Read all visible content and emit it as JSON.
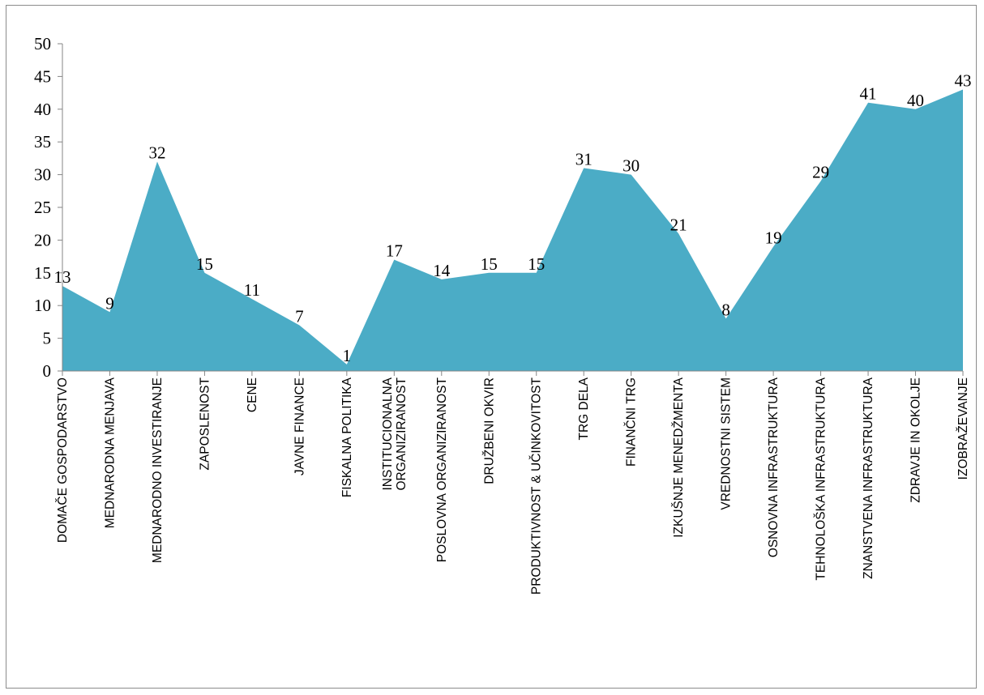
{
  "chart_data": {
    "type": "area",
    "categories": [
      [
        "DOMAČE GOSPODARSTVO"
      ],
      [
        "MEDNARODNA MENJAVA"
      ],
      [
        "MEDNARODNO INVESTIRANJE"
      ],
      [
        "ZAPOSLENOST"
      ],
      [
        "CENE"
      ],
      [
        "JAVNE FINANCE"
      ],
      [
        "FISKALNA POLITIKA"
      ],
      [
        "INSTITUCIONALNA",
        "ORGANIZIRANOST"
      ],
      [
        "POSLOVNA ORGANIZIRANOST"
      ],
      [
        "DRUŽBENI OKVIR"
      ],
      [
        "PRODUKTIVNOST & UČINKOVITOST"
      ],
      [
        "TRG DELA"
      ],
      [
        "FINANČNI TRG"
      ],
      [
        "IZKUŠNJE MENEDŽMENTA"
      ],
      [
        "VREDNOSTNI SISTEM"
      ],
      [
        "OSNOVNA INFRASTRUKTURA"
      ],
      [
        "TEHNOLOŠKA INFRASTRUKTURA"
      ],
      [
        "ZNANSTVENA INFRASTRUKTURA"
      ],
      [
        "ZDRAVJE IN OKOLJE"
      ],
      [
        "IZOBRAŽEVANJE"
      ]
    ],
    "values": [
      13,
      9,
      32,
      15,
      11,
      7,
      1,
      17,
      14,
      15,
      15,
      31,
      30,
      21,
      8,
      19,
      29,
      41,
      40,
      43
    ],
    "ylim": [
      0,
      50
    ],
    "yticks": [
      0,
      5,
      10,
      15,
      20,
      25,
      30,
      35,
      40,
      45,
      50
    ],
    "fill_color": "#4bacc6",
    "grid": false,
    "legend": "none",
    "data_labels": true
  }
}
